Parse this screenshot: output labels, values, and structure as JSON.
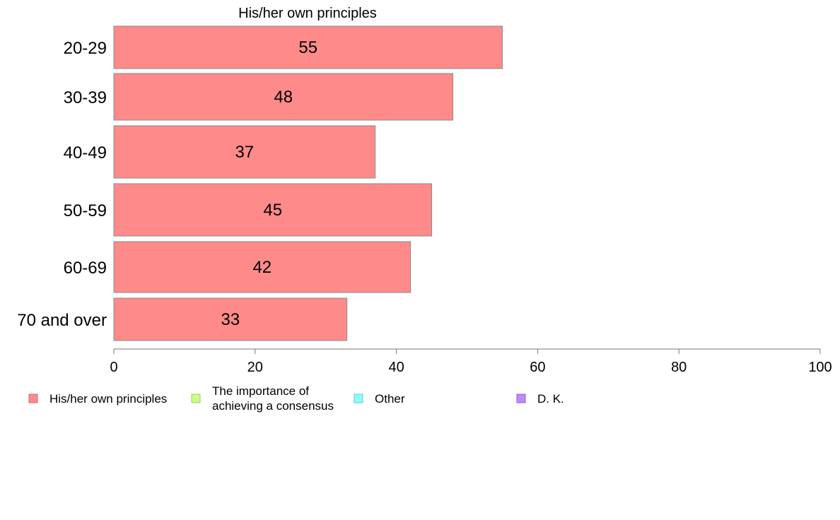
{
  "chart_data": {
    "type": "bar",
    "orientation": "horizontal",
    "title": "His/her own principles",
    "categories": [
      "20-29",
      "30-39",
      "40-49",
      "50-59",
      "60-69",
      "70 and over"
    ],
    "series": [
      {
        "name": "His/her own principles",
        "color": "#FF8A8A",
        "values": [
          55,
          48,
          37,
          45,
          42,
          33
        ]
      }
    ],
    "data_labels": [
      "55",
      "48",
      "37",
      "45",
      "42",
      "33"
    ],
    "xlim": [
      0,
      100
    ],
    "x_ticks": [
      0,
      20,
      40,
      60,
      80,
      100
    ],
    "x_tick_labels": [
      "0",
      "20",
      "40",
      "60",
      "80",
      "100"
    ],
    "grid": false,
    "legend_position": "bottom",
    "legend": [
      {
        "lines": [
          "His/her own principles"
        ],
        "color": "#FF8A8A",
        "border": "#D06A6A"
      },
      {
        "lines": [
          "The importance of",
          "achieving a consensus"
        ],
        "color": "#C8FF8A",
        "border": "#9CCB62"
      },
      {
        "lines": [
          "Other"
        ],
        "color": "#8AFFFF",
        "border": "#5ECACA"
      },
      {
        "lines": [
          "D. K."
        ],
        "color": "#C08AFF",
        "border": "#8F5FD0"
      }
    ]
  }
}
